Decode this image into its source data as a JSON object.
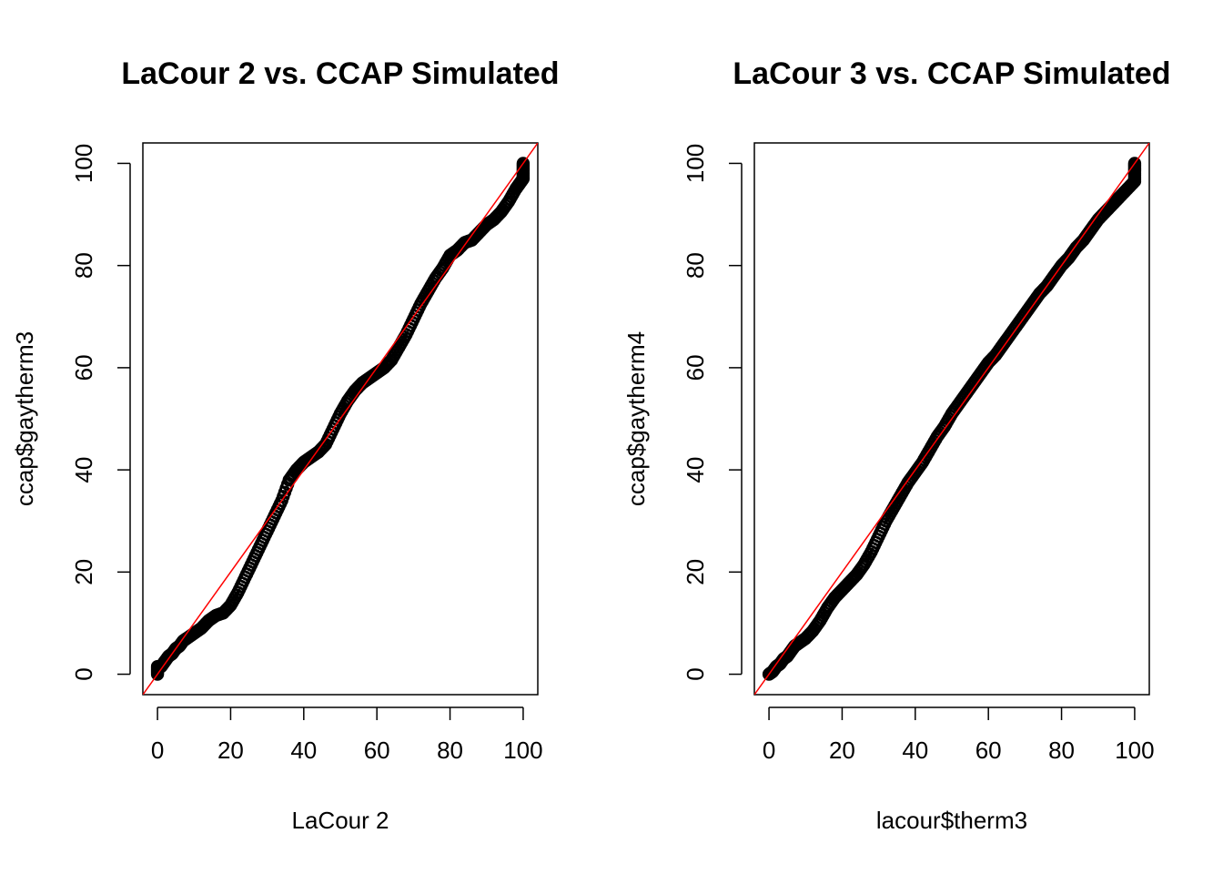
{
  "chart_data": [
    {
      "type": "scatter",
      "title": "LaCour 2 vs. CCAP Simulated",
      "xlabel": "LaCour 2",
      "ylabel": "ccap$gaytherm3",
      "xlim": [
        -4,
        104
      ],
      "ylim": [
        -4,
        104
      ],
      "xticks": [
        0,
        20,
        40,
        60,
        80,
        100
      ],
      "yticks": [
        0,
        20,
        40,
        60,
        80,
        100
      ],
      "reference_line": {
        "intercept": 0,
        "slope": 1,
        "color": "#ff0000"
      },
      "marker_color": "#000000",
      "points": [
        [
          0,
          0
        ],
        [
          0,
          1.5
        ],
        [
          1,
          1.5
        ],
        [
          2,
          2.5
        ],
        [
          3,
          3.5
        ],
        [
          4,
          4
        ],
        [
          5,
          5
        ],
        [
          6,
          5.5
        ],
        [
          7,
          6.5
        ],
        [
          8,
          7
        ],
        [
          10,
          8
        ],
        [
          12,
          9
        ],
        [
          14,
          10.5
        ],
        [
          16,
          11.5
        ],
        [
          18,
          12
        ],
        [
          20,
          13.5
        ],
        [
          22,
          16
        ],
        [
          24,
          19
        ],
        [
          26,
          22
        ],
        [
          28,
          25
        ],
        [
          30,
          28
        ],
        [
          32,
          31
        ],
        [
          34,
          34
        ],
        [
          36,
          38
        ],
        [
          38,
          40
        ],
        [
          40,
          41.5
        ],
        [
          42,
          42.5
        ],
        [
          44,
          43.5
        ],
        [
          46,
          45
        ],
        [
          48,
          48
        ],
        [
          50,
          51
        ],
        [
          52,
          53.5
        ],
        [
          54,
          55.5
        ],
        [
          56,
          57
        ],
        [
          58,
          58
        ],
        [
          60,
          59
        ],
        [
          62,
          60
        ],
        [
          64,
          61.5
        ],
        [
          66,
          64
        ],
        [
          68,
          66.5
        ],
        [
          70,
          69.5
        ],
        [
          72,
          72.5
        ],
        [
          74,
          75
        ],
        [
          76,
          77.5
        ],
        [
          78,
          79.5
        ],
        [
          80,
          82
        ],
        [
          82,
          83
        ],
        [
          84,
          84.5
        ],
        [
          86,
          85
        ],
        [
          88,
          86.5
        ],
        [
          90,
          88
        ],
        [
          92,
          89
        ],
        [
          94,
          90.5
        ],
        [
          96,
          92.5
        ],
        [
          98,
          95
        ],
        [
          99,
          96
        ],
        [
          100,
          97
        ],
        [
          100,
          98.5
        ],
        [
          100,
          100
        ]
      ]
    },
    {
      "type": "scatter",
      "title": "LaCour 3 vs. CCAP Simulated",
      "xlabel": "lacour$therm3",
      "ylabel": "ccap$gaytherm4",
      "xlim": [
        -4,
        104
      ],
      "ylim": [
        -4,
        104
      ],
      "xticks": [
        0,
        20,
        40,
        60,
        80,
        100
      ],
      "yticks": [
        0,
        20,
        40,
        60,
        80,
        100
      ],
      "reference_line": {
        "intercept": 0,
        "slope": 1,
        "color": "#ff0000"
      },
      "marker_color": "#000000",
      "points": [
        [
          0,
          0
        ],
        [
          1,
          0.5
        ],
        [
          2,
          1.5
        ],
        [
          3,
          2
        ],
        [
          4,
          3
        ],
        [
          5,
          3.5
        ],
        [
          6,
          4.5
        ],
        [
          7,
          5.5
        ],
        [
          8,
          6
        ],
        [
          10,
          7
        ],
        [
          12,
          8.5
        ],
        [
          14,
          10.5
        ],
        [
          16,
          13
        ],
        [
          18,
          15
        ],
        [
          20,
          16.5
        ],
        [
          22,
          18
        ],
        [
          24,
          19.5
        ],
        [
          26,
          21.5
        ],
        [
          28,
          24
        ],
        [
          30,
          27
        ],
        [
          32,
          30
        ],
        [
          34,
          32.5
        ],
        [
          36,
          35
        ],
        [
          38,
          37.5
        ],
        [
          40,
          39.5
        ],
        [
          42,
          41.5
        ],
        [
          44,
          44
        ],
        [
          46,
          46.5
        ],
        [
          48,
          48.5
        ],
        [
          50,
          51
        ],
        [
          52,
          53
        ],
        [
          54,
          55
        ],
        [
          56,
          57
        ],
        [
          58,
          59
        ],
        [
          60,
          61
        ],
        [
          62,
          62.5
        ],
        [
          64,
          64.5
        ],
        [
          66,
          66.5
        ],
        [
          68,
          68.5
        ],
        [
          70,
          70.5
        ],
        [
          72,
          72.5
        ],
        [
          74,
          74.5
        ],
        [
          76,
          76
        ],
        [
          78,
          78
        ],
        [
          80,
          80
        ],
        [
          82,
          81.5
        ],
        [
          84,
          83.5
        ],
        [
          86,
          85
        ],
        [
          88,
          87
        ],
        [
          90,
          89
        ],
        [
          92,
          90.5
        ],
        [
          94,
          92
        ],
        [
          96,
          93.5
        ],
        [
          98,
          95
        ],
        [
          100,
          96.5
        ],
        [
          100,
          98.5
        ],
        [
          100,
          100
        ]
      ]
    }
  ]
}
